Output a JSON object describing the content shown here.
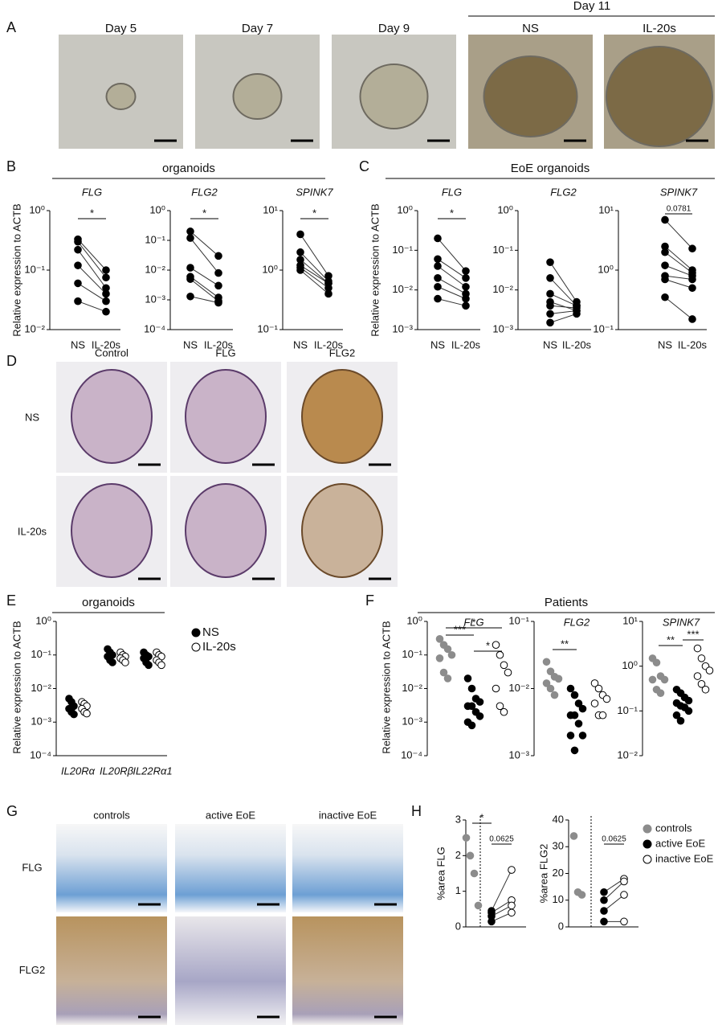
{
  "panel_labels": [
    "A",
    "B",
    "C",
    "D",
    "E",
    "F",
    "G",
    "H"
  ],
  "panel_a": {
    "columns": [
      "Day 5",
      "Day 7",
      "Day 9",
      "NS",
      "IL-20s"
    ],
    "group_title": "Day 11"
  },
  "panel_b": {
    "title": "organoids",
    "ylabel": "Relative expression to ACTB"
  },
  "panel_c": {
    "title": "EoE organoids",
    "ylabel": "Relative expression to ACTB"
  },
  "panel_d": {
    "columns": [
      "Control",
      "FLG",
      "FLG2"
    ],
    "rows": [
      "NS",
      "IL-20s"
    ]
  },
  "panel_e": {
    "title": "organoids",
    "ylabel": "Relative expression to ACTB"
  },
  "panel_f": {
    "title": "Patients",
    "ylabel": "Relative expression to ACTB"
  },
  "panel_g": {
    "columns": [
      "controls",
      "active EoE",
      "inactive EoE"
    ],
    "rows": [
      "FLG",
      "FLG2"
    ]
  },
  "panel_h": {
    "legend": [
      {
        "name": "controls",
        "color": "#8c8c8c"
      },
      {
        "name": "active EoE",
        "color": "#000000"
      },
      {
        "name": "inactive EoE",
        "color": "#ffffff"
      }
    ]
  },
  "chart_data": [
    {
      "type": "strip",
      "title": "FLG",
      "log": true,
      "ylim": [
        0.01,
        1
      ],
      "yticks": [
        {
          "value": 1,
          "label": "10⁰"
        },
        {
          "value": 0.1,
          "label": "10⁻¹"
        },
        {
          "value": 0.01,
          "label": "10⁻²"
        }
      ],
      "categories": [
        "NS",
        "IL-20s"
      ],
      "series": [
        {
          "color": "#000000",
          "values": [
            0.33,
            0.3,
            0.22,
            0.12,
            0.06,
            0.03
          ]
        },
        {
          "color": "#000000",
          "values": [
            0.1,
            0.075,
            0.05,
            0.04,
            0.03,
            0.02
          ]
        }
      ],
      "connect": [
        0,
        1
      ],
      "annotations": [
        {
          "text": "*",
          "from": 0,
          "to": 1
        }
      ]
    },
    {
      "type": "strip",
      "title": "FLG2",
      "log": true,
      "ylim": [
        0.0001,
        1
      ],
      "yticks": [
        {
          "value": 1,
          "label": "10⁰"
        },
        {
          "value": 0.1,
          "label": "10⁻¹"
        },
        {
          "value": 0.01,
          "label": "10⁻²"
        },
        {
          "value": 0.001,
          "label": "10⁻³"
        },
        {
          "value": 0.0001,
          "label": "10⁻⁴"
        }
      ],
      "categories": [
        "NS",
        "IL-20s"
      ],
      "series": [
        {
          "color": "#000000",
          "values": [
            0.2,
            0.12,
            0.012,
            0.006,
            0.005,
            0.0013
          ]
        },
        {
          "color": "#000000",
          "values": [
            0.03,
            0.008,
            0.003,
            0.0012,
            0.0009,
            0.0008
          ]
        }
      ],
      "connect": [
        0,
        1
      ],
      "annotations": [
        {
          "text": "*",
          "from": 0,
          "to": 1
        }
      ]
    },
    {
      "type": "strip",
      "title": "SPINK7",
      "log": true,
      "ylim": [
        0.1,
        10
      ],
      "yticks": [
        {
          "value": 10,
          "label": "10¹"
        },
        {
          "value": 1,
          "label": "10⁰"
        },
        {
          "value": 0.1,
          "label": "10⁻¹"
        }
      ],
      "categories": [
        "NS",
        "IL-20s"
      ],
      "series": [
        {
          "color": "#000000",
          "values": [
            4,
            2,
            1.5,
            1.2,
            1.1,
            1.0
          ]
        },
        {
          "color": "#000000",
          "values": [
            0.8,
            0.65,
            0.6,
            0.6,
            0.5,
            0.4
          ]
        }
      ],
      "connect": [
        0,
        1
      ],
      "annotations": [
        {
          "text": "*",
          "from": 0,
          "to": 1
        }
      ]
    },
    {
      "type": "strip",
      "title": "FLG",
      "log": true,
      "ylim": [
        0.001,
        1
      ],
      "yticks": [
        {
          "value": 1,
          "label": "10⁰"
        },
        {
          "value": 0.1,
          "label": "10⁻¹"
        },
        {
          "value": 0.01,
          "label": "10⁻²"
        },
        {
          "value": 0.001,
          "label": "10⁻³"
        }
      ],
      "categories": [
        "NS",
        "IL-20s"
      ],
      "series": [
        {
          "color": "#000000",
          "values": [
            0.2,
            0.06,
            0.04,
            0.02,
            0.012,
            0.006
          ]
        },
        {
          "color": "#000000",
          "values": [
            0.03,
            0.02,
            0.012,
            0.008,
            0.006,
            0.004
          ]
        }
      ],
      "connect": [
        0,
        1
      ],
      "annotations": [
        {
          "text": "*",
          "from": 0,
          "to": 1
        }
      ]
    },
    {
      "type": "strip",
      "title": "FLG2",
      "log": true,
      "ylim": [
        0.001,
        1
      ],
      "yticks": [
        {
          "value": 1,
          "label": "10⁰"
        },
        {
          "value": 0.1,
          "label": "10⁻¹"
        },
        {
          "value": 0.01,
          "label": "10⁻²"
        },
        {
          "value": 0.001,
          "label": "10⁻³"
        }
      ],
      "categories": [
        "NS",
        "IL-20s"
      ],
      "series": [
        {
          "color": "#000000",
          "values": [
            0.05,
            0.02,
            0.008,
            0.005,
            0.004,
            0.0025,
            0.0015
          ]
        },
        {
          "color": "#000000",
          "values": [
            0.005,
            0.004,
            0.004,
            0.003,
            0.0035,
            0.003,
            0.0025
          ]
        }
      ],
      "connect": [
        0,
        1
      ],
      "annotations": []
    },
    {
      "type": "strip",
      "title": "SPINK7",
      "log": true,
      "ylim": [
        0.1,
        10
      ],
      "yticks": [
        {
          "value": 10,
          "label": "10¹"
        },
        {
          "value": 1,
          "label": "10⁰"
        },
        {
          "value": 0.1,
          "label": "10⁻¹"
        }
      ],
      "categories": [
        "NS",
        "IL-20s"
      ],
      "series": [
        {
          "color": "#000000",
          "values": [
            7,
            2.5,
            2,
            1.2,
            0.8,
            0.7,
            0.35
          ]
        },
        {
          "color": "#000000",
          "values": [
            2.3,
            1.0,
            0.9,
            0.8,
            0.7,
            0.5,
            0.15
          ]
        }
      ],
      "connect": [
        0,
        1
      ],
      "annotations": [
        {
          "text": "0.0781",
          "from": 0,
          "to": 1
        }
      ]
    },
    {
      "type": "strip",
      "log": true,
      "ylim": [
        0.0001,
        1
      ],
      "yticks": [
        {
          "value": 1,
          "label": "10⁰"
        },
        {
          "value": 0.1,
          "label": "10⁻¹"
        },
        {
          "value": 0.01,
          "label": "10⁻²"
        },
        {
          "value": 0.001,
          "label": "10⁻³"
        },
        {
          "value": 0.0001,
          "label": "10⁻⁴"
        }
      ],
      "categories": [
        "IL20Rα",
        "IL20Rβ",
        "IL22Rα1"
      ],
      "series": [
        {
          "name": "NS",
          "color": "#000000",
          "values": [
            [
              0.005,
              0.004,
              0.003,
              0.0025,
              0.002,
              0.0017
            ],
            [
              0.15,
              0.12,
              0.1,
              0.09,
              0.07,
              0.06
            ],
            [
              0.12,
              0.1,
              0.09,
              0.08,
              0.06,
              0.05
            ]
          ]
        },
        {
          "name": "IL-20s",
          "color": "#ffffff",
          "values": [
            [
              0.004,
              0.0035,
              0.003,
              0.0025,
              0.002,
              0.0018
            ],
            [
              0.12,
              0.1,
              0.09,
              0.08,
              0.07,
              0.06
            ],
            [
              0.12,
              0.1,
              0.09,
              0.07,
              0.06,
              0.05
            ]
          ]
        }
      ],
      "annotations": []
    },
    {
      "type": "strip",
      "title": "FLG",
      "log": true,
      "ylim": [
        0.0001,
        1
      ],
      "yticks": [
        {
          "value": 1,
          "label": "10⁰"
        },
        {
          "value": 0.1,
          "label": "10⁻¹"
        },
        {
          "value": 0.01,
          "label": "10⁻²"
        },
        {
          "value": 0.001,
          "label": "10⁻³"
        },
        {
          "value": 0.0001,
          "label": "10⁻⁴"
        }
      ],
      "series": [
        {
          "color": "#8c8c8c",
          "values": [
            0.3,
            0.2,
            0.15,
            0.1,
            0.08,
            0.03,
            0.02
          ]
        },
        {
          "color": "#000000",
          "values": [
            0.02,
            0.01,
            0.005,
            0.004,
            0.003,
            0.003,
            0.002,
            0.0015,
            0.001,
            0.0008
          ]
        },
        {
          "color": "#ffffff",
          "values": [
            0.2,
            0.1,
            0.05,
            0.03,
            0.01,
            0.003,
            0.002
          ]
        }
      ],
      "annotations": [
        {
          "text": "***",
          "from": 0,
          "to": 1
        },
        {
          "text": "*",
          "from": 0,
          "to": 2
        },
        {
          "text": "*",
          "from": 1,
          "to": 2
        }
      ]
    },
    {
      "type": "strip",
      "title": "FLG2",
      "log": true,
      "ylim": [
        0.001,
        0.1
      ],
      "yticks": [
        {
          "value": 0.1,
          "label": "10⁻¹"
        },
        {
          "value": 0.01,
          "label": "10⁻²"
        },
        {
          "value": 0.001,
          "label": "10⁻³"
        }
      ],
      "series": [
        {
          "color": "#8c8c8c",
          "values": [
            0.025,
            0.018,
            0.015,
            0.014,
            0.012,
            0.01,
            0.008
          ]
        },
        {
          "color": "#000000",
          "values": [
            0.01,
            0.008,
            0.006,
            0.005,
            0.004,
            0.004,
            0.003,
            0.002,
            0.002,
            0.0012
          ]
        },
        {
          "color": "#ffffff",
          "values": [
            0.012,
            0.01,
            0.008,
            0.007,
            0.006,
            0.004,
            0.004
          ]
        }
      ],
      "annotations": [
        {
          "text": "**",
          "from": 0,
          "to": 1
        }
      ]
    },
    {
      "type": "strip",
      "title": "SPINK7",
      "log": true,
      "ylim": [
        0.01,
        10
      ],
      "yticks": [
        {
          "value": 10,
          "label": "10¹"
        },
        {
          "value": 1,
          "label": "10⁰"
        },
        {
          "value": 0.1,
          "label": "10⁻¹"
        },
        {
          "value": 0.01,
          "label": "10⁻²"
        }
      ],
      "series": [
        {
          "color": "#8c8c8c",
          "values": [
            1.5,
            1.2,
            0.6,
            0.5,
            0.5,
            0.3,
            0.25
          ]
        },
        {
          "color": "#000000",
          "values": [
            0.3,
            0.25,
            0.2,
            0.17,
            0.15,
            0.13,
            0.12,
            0.1,
            0.08,
            0.06
          ]
        },
        {
          "color": "#ffffff",
          "values": [
            2.5,
            1.5,
            1.0,
            0.8,
            0.6,
            0.4,
            0.3
          ]
        }
      ],
      "annotations": [
        {
          "text": "**",
          "from": 0,
          "to": 1
        },
        {
          "text": "***",
          "from": 1,
          "to": 2
        }
      ]
    },
    {
      "type": "strip",
      "ylabel": "%area  FLG",
      "ylim": [
        0,
        3
      ],
      "yticks": [
        0,
        1,
        2,
        3
      ],
      "series": [
        {
          "color": "#8c8c8c",
          "values": [
            2.5,
            2.0,
            1.5,
            0.6
          ]
        },
        {
          "color": "#000000",
          "values": [
            0.45,
            0.4,
            0.3,
            0.15
          ]
        },
        {
          "color": "#ffffff",
          "values": [
            1.6,
            0.75,
            0.6,
            0.4
          ]
        }
      ],
      "connect": [
        1,
        2
      ],
      "divider": true,
      "annotations": [
        {
          "text": "*",
          "from": 0,
          "to": 1
        },
        {
          "text": "0.0625",
          "from": 1,
          "to": 2
        }
      ]
    },
    {
      "type": "strip",
      "ylabel": "%area  FLG2",
      "ylim": [
        0,
        40
      ],
      "yticks": [
        0,
        10,
        20,
        30,
        40
      ],
      "series": [
        {
          "color": "#8c8c8c",
          "values": [
            34,
            13,
            12
          ]
        },
        {
          "color": "#000000",
          "values": [
            13,
            10,
            6,
            2
          ]
        },
        {
          "color": "#ffffff",
          "values": [
            18,
            17,
            12,
            2
          ]
        }
      ],
      "connect": [
        1,
        2
      ],
      "divider": true,
      "annotations": [
        {
          "text": "0.0625",
          "from": 1,
          "to": 2
        }
      ]
    }
  ]
}
